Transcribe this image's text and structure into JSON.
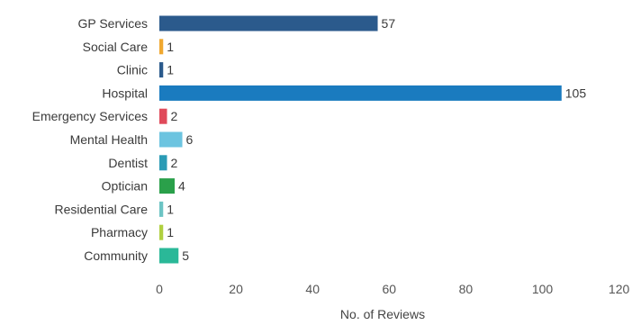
{
  "chart_data": {
    "type": "bar",
    "orientation": "horizontal",
    "categories": [
      "GP Services",
      "Social Care",
      "Clinic",
      "Hospital",
      "Emergency Services",
      "Mental Health",
      "Dentist",
      "Optician",
      "Residential Care",
      "Pharmacy",
      "Community"
    ],
    "values": [
      57,
      1,
      1,
      105,
      2,
      6,
      2,
      4,
      1,
      1,
      5
    ],
    "value_labels": [
      "57",
      "1",
      "1",
      "105",
      "2",
      "6",
      "2",
      "4",
      "1",
      "1",
      "5"
    ],
    "colors": [
      "#2b5a8c",
      "#f0a830",
      "#2b5a8c",
      "#1a7bbf",
      "#e04a5a",
      "#6cc4e0",
      "#2a9bb5",
      "#2aa04a",
      "#6cc4c4",
      "#b0d040",
      "#2ab898"
    ],
    "xlabel": "No. of Reviews",
    "ylabel": "",
    "title": "",
    "xlim": [
      0,
      120
    ],
    "xticks": [
      0,
      20,
      40,
      60,
      80,
      100,
      120
    ],
    "xtick_labels": [
      "0",
      "20",
      "40",
      "60",
      "80",
      "100",
      "120"
    ],
    "grid": false,
    "legend": "none"
  }
}
